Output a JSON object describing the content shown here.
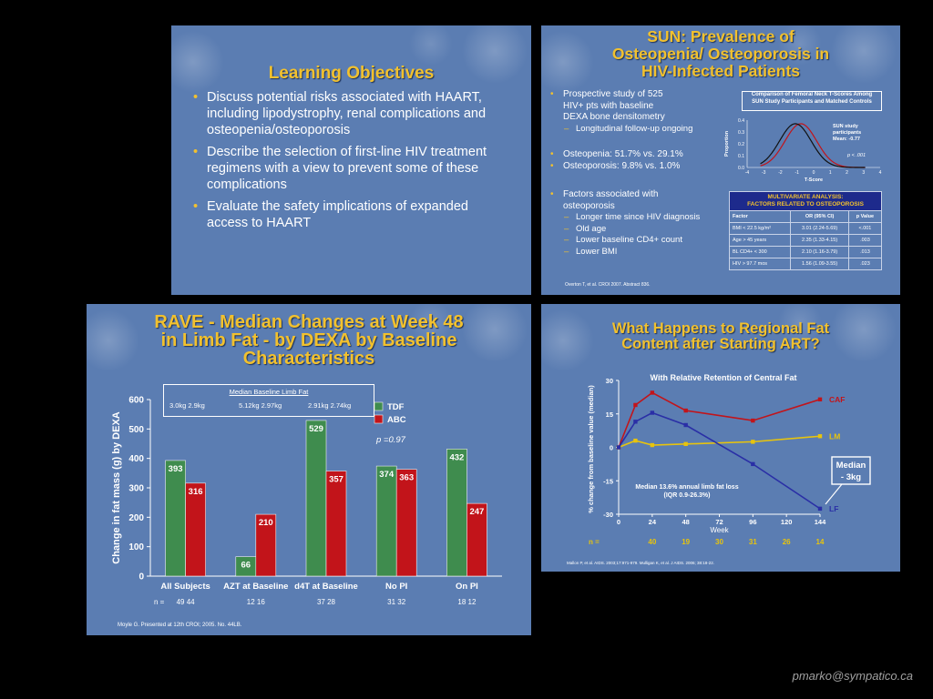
{
  "slide1": {
    "title": "Learning Objectives",
    "bullets": [
      "Discuss potential risks associated with HAART, including lipodystrophy, renal complications and osteopenia/osteoporosis",
      "Describe the selection of first-line HIV treatment regimens with a view to prevent some of these complications",
      "Evaluate the safety implications of expanded access to HAART"
    ]
  },
  "slide2": {
    "title_lines": [
      "SUN: Prevalence of",
      "Osteopenia/ Osteoporosis in",
      "HIV-Infected Patients"
    ],
    "bullet1": "Prospective study of 525 HIV+ pts with baseline DEXA bone densitometry",
    "sub1": "Longitudinal follow-up ongoing",
    "bullet2": "Osteopenia: 51.7% vs. 29.1%",
    "bullet3": "Osteoporosis: 9.8% vs. 1.0%",
    "bullet4": "Factors associated with osteoporosis",
    "subs": [
      "Longer time since HIV diagnosis",
      "Old age",
      "Lower baseline CD4+ count",
      "Lower BMI"
    ],
    "compare_box": [
      "Comparison of Femoral Neck T-Scores Among",
      "SUN Study Participants and Matched Controls"
    ],
    "curve_label": [
      "SUN study",
      "participants",
      "Mean: -0.77"
    ],
    "p_label": "p < .001",
    "ylabel": "Proportion",
    "xlabel": "T-Score",
    "yticks": [
      "0.4",
      "0.3",
      "0.2",
      "0.1",
      "0.0"
    ],
    "xticks": [
      "-4",
      "-3",
      "-2",
      "-1",
      "0",
      "1",
      "2",
      "3",
      "4"
    ],
    "table_header": [
      "MULTIVARIATE ANALYSIS:",
      "FACTORS RELATED TO OSTEOPOROSIS"
    ],
    "table_cols": [
      "Factor",
      "OR (95% CI)",
      "p Value"
    ],
    "table_rows": [
      [
        "BMI < 22.5 kg/m²",
        "3.01 (2.24-5.69)",
        "<.001"
      ],
      [
        "Age > 45 years",
        "2.35 (1.33-4.15)",
        ".003"
      ],
      [
        "BL CD4+ < 300",
        "2.10 (1.16-3.79)",
        ".013"
      ],
      [
        "HIV > 97.7 mos",
        "1.56 (1.09-3.55)",
        ".023"
      ]
    ],
    "source": "Overton T, et al. CROI 2007. Abstract 836."
  },
  "slide3": {
    "title_lines": [
      "RAVE - Median Changes at Week 48",
      "in Limb Fat - by DEXA by Baseline",
      "Characteristics"
    ],
    "box_title": "Median Baseline Limb Fat",
    "box_values": [
      "3.0kg  2.9kg",
      "5.12kg  2.97kg",
      "2.91kg  2.74kg"
    ],
    "p_label": "p =0.97",
    "n_label": "n =",
    "n_values": [
      "49  44",
      "12  16",
      "37  28",
      "31  32",
      "18  12"
    ],
    "source": "Moyle G. Presented at 12th CROI; 2005. No. 44LB.",
    "colors": {
      "TDF": "#3f8c4e",
      "ABC": "#c2141a"
    }
  },
  "slide4": {
    "title_lines": [
      "What Happens to Regional Fat",
      "Content after Starting ART?"
    ],
    "subtitle": "With Relative Retention of Central Fat",
    "ylabel": "% change from baseline value (median)",
    "annotation": [
      "Median 13.6% annual limb fat loss",
      "(IQR 0.9-26.3%)"
    ],
    "median_box": [
      "Median",
      "- 3kg"
    ],
    "n_label": "n =",
    "n_values": [
      "40",
      "19",
      "30",
      "31",
      "26",
      "14"
    ],
    "source": "Mallon P, et al. AIDS. 2003;17:971-979. Mulligan K, et al. J AIDS. 2006; 38:18-22.",
    "colors": {
      "CAF": "#c2141a",
      "LM": "#e8c40c",
      "LF": "#2a2fa6"
    }
  },
  "credit": "pmarko@sympatico.ca",
  "chart_data": [
    {
      "type": "bar",
      "title": "RAVE - Median Changes at Week 48 in Limb Fat - by DEXA by Baseline Characteristics",
      "ylabel": "Change in fat mass (g) by DEXA",
      "ylim": [
        0,
        600
      ],
      "yticks": [
        0,
        100,
        200,
        300,
        400,
        500,
        600
      ],
      "categories": [
        "All Subjects",
        "AZT at Baseline",
        "d4T at Baseline",
        "No PI",
        "On PI"
      ],
      "series": [
        {
          "name": "TDF",
          "values": [
            393,
            66,
            529,
            374,
            432
          ]
        },
        {
          "name": "ABC",
          "values": [
            316,
            210,
            357,
            363,
            247
          ]
        }
      ],
      "legend": "top-right"
    },
    {
      "type": "line",
      "subtitle": "With Relative Retention of Central Fat",
      "xlabel": "Week",
      "ylabel": "% change from baseline value (median)",
      "xlim": [
        0,
        144
      ],
      "ylim": [
        -30,
        30
      ],
      "xticks": [
        0,
        24,
        48,
        72,
        96,
        120,
        144
      ],
      "yticks": [
        30,
        15,
        0,
        -15,
        -30
      ],
      "series": [
        {
          "name": "CAF",
          "x": [
            0,
            12,
            24,
            48,
            96,
            144
          ],
          "y": [
            0,
            19,
            24.5,
            16.5,
            12,
            21.5
          ]
        },
        {
          "name": "LM",
          "x": [
            0,
            12,
            24,
            48,
            96,
            144
          ],
          "y": [
            0,
            3,
            1,
            1.5,
            2.5,
            5
          ]
        },
        {
          "name": "LF",
          "x": [
            0,
            12,
            24,
            48,
            96,
            144
          ],
          "y": [
            0,
            11.5,
            15.5,
            10,
            -7.5,
            -27.5
          ]
        }
      ]
    },
    {
      "type": "line",
      "title": "Comparison of Femoral Neck T-Scores Among SUN Study Participants and Matched Controls",
      "xlabel": "T-Score",
      "ylabel": "Proportion",
      "xlim": [
        -4,
        4
      ],
      "ylim": [
        0,
        0.4
      ],
      "series": [
        {
          "name": "SUN study participants",
          "mean": -0.77,
          "color": "#c2141a"
        },
        {
          "name": "",
          "mean": -1.1,
          "color": "#111111"
        }
      ]
    }
  ]
}
